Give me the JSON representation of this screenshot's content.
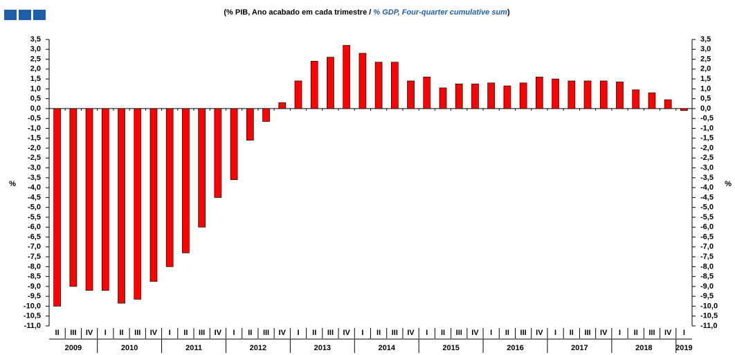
{
  "chart_data": {
    "type": "bar",
    "subtitle": [
      "(% PIB, Ano acabado em cada trimestre / ",
      "% GDP, Four-quarter cumulative sum",
      ")"
    ],
    "y_label": "%",
    "y2_label": "%",
    "categories": [
      "II",
      "III",
      "IV",
      "I",
      "II",
      "III",
      "IV",
      "I",
      "II",
      "III",
      "IV",
      "I",
      "II",
      "III",
      "IV",
      "I",
      "II",
      "III",
      "IV",
      "I",
      "II",
      "III",
      "IV",
      "I",
      "II",
      "III",
      "IV",
      "I",
      "II",
      "III",
      "IV",
      "I",
      "II",
      "III",
      "IV",
      "I",
      "II",
      "III",
      "IV",
      "I"
    ],
    "years": [
      "2009",
      "2010",
      "2011",
      "2012",
      "2013",
      "2014",
      "2015",
      "2016",
      "2017",
      "2018",
      "2019"
    ],
    "values": [
      -10.0,
      -9.0,
      -9.2,
      -9.2,
      -9.85,
      -9.65,
      -8.75,
      -8.0,
      -7.3,
      -6.0,
      -4.5,
      -3.6,
      -1.6,
      -0.65,
      0.3,
      1.4,
      2.4,
      2.6,
      3.2,
      2.8,
      2.35,
      2.35,
      1.4,
      1.6,
      1.05,
      1.25,
      1.25,
      1.3,
      1.15,
      1.3,
      1.6,
      1.5,
      1.4,
      1.4,
      1.4,
      1.35,
      0.95,
      0.8,
      0.45,
      -0.1
    ],
    "color": "#ff0000",
    "ylim": [
      -11.0,
      3.5
    ],
    "yticks": [
      {
        "value": 3.5,
        "label": "3,5"
      },
      {
        "value": 3.0,
        "label": "3,0"
      },
      {
        "value": 2.5,
        "label": "2,5"
      },
      {
        "value": 2.0,
        "label": "2,0"
      },
      {
        "value": 1.5,
        "label": "1,5"
      },
      {
        "value": 1.0,
        "label": "1,0"
      },
      {
        "value": 0.5,
        "label": "0,5"
      },
      {
        "value": 0.0,
        "label": "0,0"
      },
      {
        "value": -0.5,
        "label": "-0,5"
      },
      {
        "value": -1.0,
        "label": "-1,0"
      },
      {
        "value": -1.5,
        "label": "-1,5"
      },
      {
        "value": -2.0,
        "label": "-2,0"
      },
      {
        "value": -2.5,
        "label": "-2,5"
      },
      {
        "value": -3.0,
        "label": "-3,0"
      },
      {
        "value": -3.5,
        "label": "-3,5"
      },
      {
        "value": -4.0,
        "label": "-4,0"
      },
      {
        "value": -4.5,
        "label": "-4,5"
      },
      {
        "value": -5.0,
        "label": "-5,0"
      },
      {
        "value": -5.5,
        "label": "-5,5"
      },
      {
        "value": -6.0,
        "label": "-6,0"
      },
      {
        "value": -6.5,
        "label": "-6,5"
      },
      {
        "value": -7.0,
        "label": "-7,0"
      },
      {
        "value": -7.5,
        "label": "-7,5"
      },
      {
        "value": -8.0,
        "label": "-8,0"
      },
      {
        "value": -8.5,
        "label": "-8,5"
      },
      {
        "value": -9.0,
        "label": "-9,0"
      },
      {
        "value": -9.5,
        "label": "-9,5"
      },
      {
        "value": -10.0,
        "label": "-10,0"
      },
      {
        "value": -10.5,
        "label": "-10,5"
      },
      {
        "value": -11.0,
        "label": "-11,0"
      }
    ]
  }
}
